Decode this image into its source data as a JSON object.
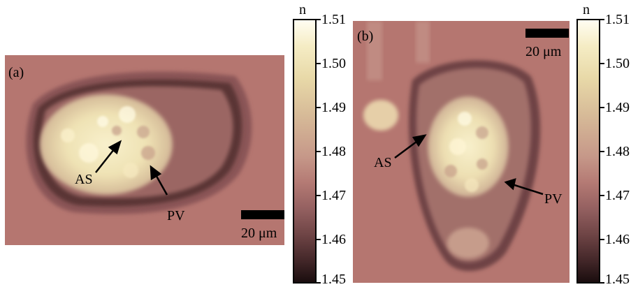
{
  "panel_a": {
    "label": "(a)",
    "annotations": [
      "AS",
      "PV"
    ],
    "scale_label": "20 μm"
  },
  "panel_b": {
    "label": "(b)",
    "annotations": [
      "AS",
      "PV"
    ],
    "scale_label": "20 μm"
  },
  "colorbar": {
    "title": "n",
    "ticks": [
      "1.51",
      "1.50",
      "1.49",
      "1.48",
      "1.47",
      "1.46",
      "1.45"
    ]
  },
  "colors": {
    "background_tone": "#b57670",
    "bright_tone": "#fffdf2",
    "dark_tone": "#1a0d0e"
  }
}
